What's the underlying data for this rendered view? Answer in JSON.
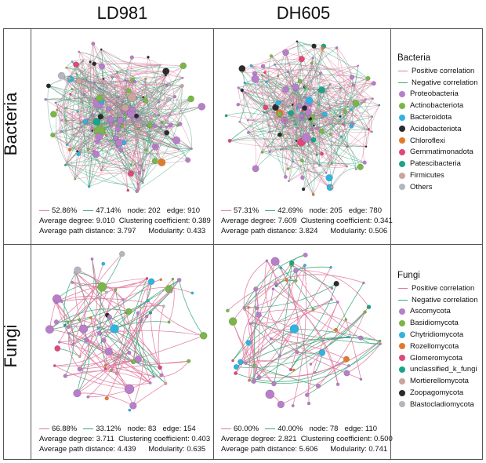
{
  "columns": [
    "LD981",
    "DH605"
  ],
  "rows": [
    "Bacteria",
    "Fungi"
  ],
  "colors": {
    "positive": "#e07aa0",
    "negative": "#3aa779",
    "node_default": "#b77ec9"
  },
  "legends": [
    {
      "title": "Bacteria",
      "lines": [
        {
          "label": "Positive correlation",
          "color": "#e07aa0"
        },
        {
          "label": "Negative correlation",
          "color": "#3aa779"
        }
      ],
      "items": [
        {
          "label": "Proteobacteria",
          "color": "#b77ec9"
        },
        {
          "label": "Actinobacteriota",
          "color": "#7ab648"
        },
        {
          "label": "Bacteroidota",
          "color": "#2fb3e0"
        },
        {
          "label": "Acidobacteriota",
          "color": "#2b2b2b"
        },
        {
          "label": "Chloroflexi",
          "color": "#e07b2c"
        },
        {
          "label": "Gemmatimonadota",
          "color": "#e0487a"
        },
        {
          "label": "Patescibacteria",
          "color": "#1aa58a"
        },
        {
          "label": "Firmicutes",
          "color": "#c9a59b"
        },
        {
          "label": "Others",
          "color": "#b5b5be"
        }
      ]
    },
    {
      "title": "Fungi",
      "lines": [
        {
          "label": "Positive correlation",
          "color": "#e07aa0"
        },
        {
          "label": "Negative correlation",
          "color": "#3aa779"
        }
      ],
      "items": [
        {
          "label": "Ascomycota",
          "color": "#b77ec9"
        },
        {
          "label": "Basidiomycota",
          "color": "#7ab648"
        },
        {
          "label": "Chytridiomycota",
          "color": "#2fb3e0"
        },
        {
          "label": "Rozellomycota",
          "color": "#e07b2c"
        },
        {
          "label": "Glomeromycota",
          "color": "#e0487a"
        },
        {
          "label": "unclassified_k_fungi",
          "color": "#1aa58a"
        },
        {
          "label": "Mortierellomycota",
          "color": "#c9a59b"
        },
        {
          "label": "Zoopagomycota",
          "color": "#2b2b2b"
        },
        {
          "label": "Blastocladiomycota",
          "color": "#b5b5be"
        }
      ]
    }
  ],
  "panels": [
    {
      "id": "bac-ld981",
      "positive": "52.86%",
      "negative": "47.14%",
      "node": "node: 202",
      "edge": "edge: 910",
      "avg_degree": "Average degree: 9.010",
      "clustering": "Clustering coefficient: 0.389",
      "path": "Average path distance: 3.797",
      "modularity": "Modularity: 0.433"
    },
    {
      "id": "bac-dh605",
      "positive": "57.31%",
      "negative": "42.69%",
      "node": "node: 205",
      "edge": "edge: 780",
      "avg_degree": "Average degree: 7.609",
      "clustering": "Clustering coefficient: 0.341",
      "path": "Average path distance: 3.824",
      "modularity": "Modularity: 0.506"
    },
    {
      "id": "fun-ld981",
      "positive": "66.88%",
      "negative": "33.12%",
      "node": "node: 83",
      "edge": "edge: 154",
      "avg_degree": "Average degree: 3.711",
      "clustering": "Clustering coefficient: 0.403",
      "path": "Average path distance: 4.439",
      "modularity": "Modularity: 0.635"
    },
    {
      "id": "fun-dh605",
      "positive": "60.00%",
      "negative": "40.00%",
      "node": "node: 78",
      "edge": "edge: 110",
      "avg_degree": "Average degree: 2.821",
      "clustering": "Clustering coefficient: 0.500",
      "path": "Average path distance: 5.606",
      "modularity": "Modularity: 0.741"
    }
  ]
}
